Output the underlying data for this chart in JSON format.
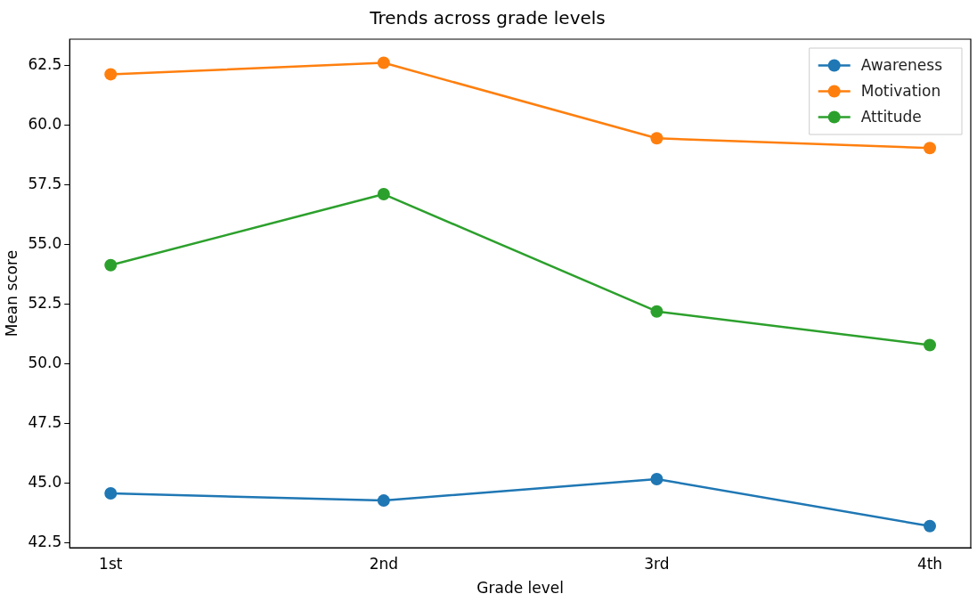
{
  "chart_data": {
    "type": "line",
    "title": "Trends across grade levels",
    "xlabel": "Grade level",
    "ylabel": "Mean score",
    "categories": [
      "1st",
      "2nd",
      "3rd",
      "4th"
    ],
    "series": [
      {
        "name": "Awareness",
        "color": "#1f77b4",
        "values": [
          44.58,
          44.28,
          45.18,
          43.21
        ]
      },
      {
        "name": "Motivation",
        "color": "#ff7f0e",
        "values": [
          62.13,
          62.61,
          59.45,
          59.04
        ]
      },
      {
        "name": "Attitude",
        "color": "#2ca02c",
        "values": [
          54.14,
          57.11,
          52.2,
          50.79
        ]
      }
    ],
    "ylim": [
      42.3,
      63.6
    ],
    "yticks": [
      42.5,
      {
        "value": 45,
        "label": "45.0"
      },
      47.5,
      {
        "value": 50,
        "label": "50.0"
      },
      52.5,
      {
        "value": 55,
        "label": "55.0"
      },
      57.5,
      {
        "value": 60,
        "label": "60.0"
      },
      62.5
    ],
    "grid": false,
    "legend": "top right",
    "marker": "circle",
    "line_style": "solid"
  }
}
